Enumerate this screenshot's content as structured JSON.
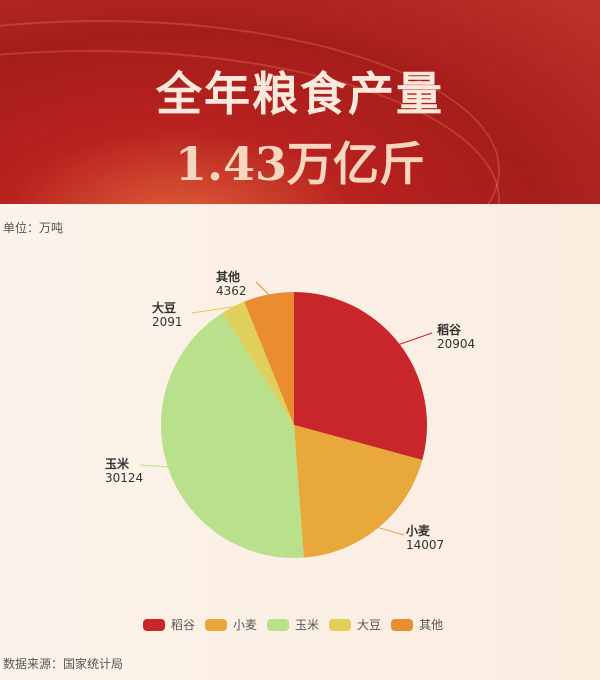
{
  "header": {
    "title": "全年粮食产量",
    "subtitle": "1.43万亿斤"
  },
  "unit": "单位：万吨",
  "source": "数据来源：国家统计局",
  "chart_data": {
    "type": "pie",
    "start_angle": "12 o'clock, clockwise",
    "legend": "bottom",
    "categories": [
      "稻谷",
      "小麦",
      "玉米",
      "大豆",
      "其他"
    ],
    "values": [
      20904,
      14007,
      30124,
      2091,
      4362
    ],
    "colors": [
      "#c9262c",
      "#e9a83c",
      "#b9e08a",
      "#e0cf5a",
      "#ea8c30"
    ]
  }
}
